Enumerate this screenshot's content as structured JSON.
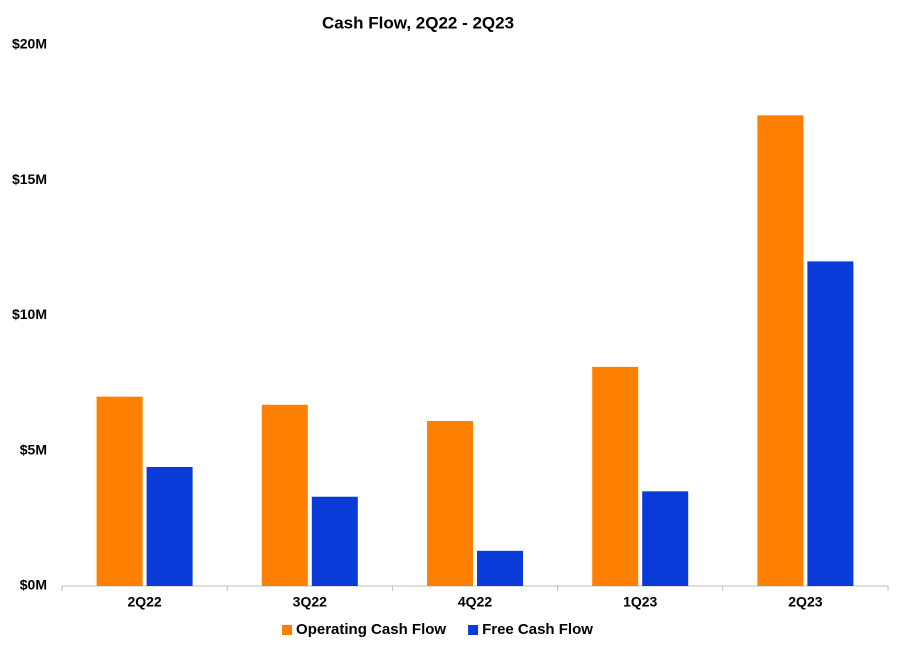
{
  "chart_data": {
    "type": "bar",
    "title": "Cash Flow, 2Q22 - 2Q23",
    "categories": [
      "2Q22",
      "3Q22",
      "4Q22",
      "1Q23",
      "2Q23"
    ],
    "series": [
      {
        "name": "Operating Cash Flow",
        "color": "#ff7f00",
        "values": [
          7.0,
          6.7,
          6.1,
          8.1,
          17.4
        ]
      },
      {
        "name": "Free Cash Flow",
        "color": "#0a3bd9",
        "values": [
          4.4,
          3.3,
          1.3,
          3.5,
          12.0
        ]
      }
    ],
    "ylim": [
      0,
      20
    ],
    "yticks": [
      {
        "value": 0,
        "label": "$0M"
      },
      {
        "value": 5,
        "label": "$5M"
      },
      {
        "value": 10,
        "label": "$10M"
      },
      {
        "value": 15,
        "label": "$15M"
      },
      {
        "value": 20,
        "label": "$20M"
      }
    ],
    "grid": false,
    "legend": "bottom"
  }
}
